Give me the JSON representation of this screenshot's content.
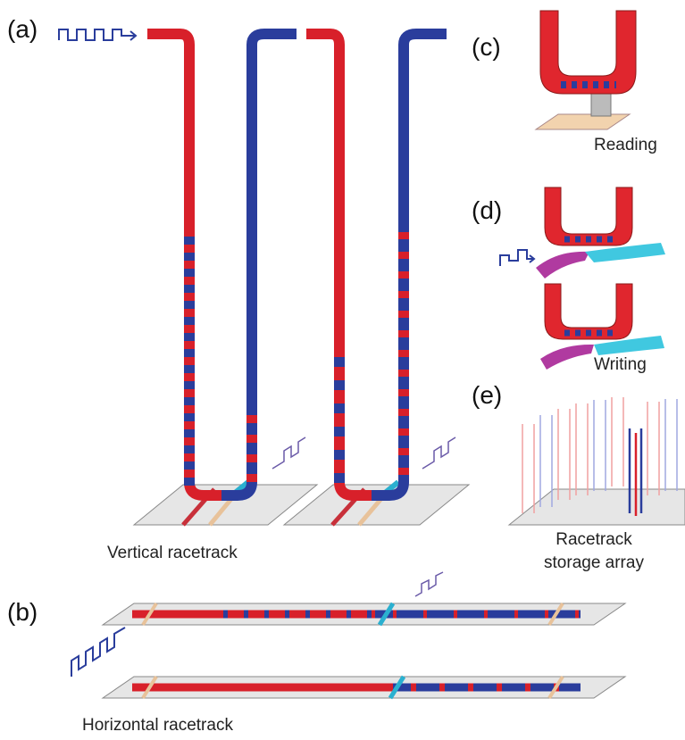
{
  "panels": [
    {
      "label": "(a)",
      "caption": "Vertical racetrack"
    },
    {
      "label": "(b)",
      "caption": "Horizontal racetrack"
    },
    {
      "label": "(c)",
      "caption": "Reading"
    },
    {
      "label": "(d)",
      "caption": "Writing"
    },
    {
      "label": "(e)",
      "caption_lines": [
        "Racetrack",
        "storage array"
      ]
    }
  ]
}
